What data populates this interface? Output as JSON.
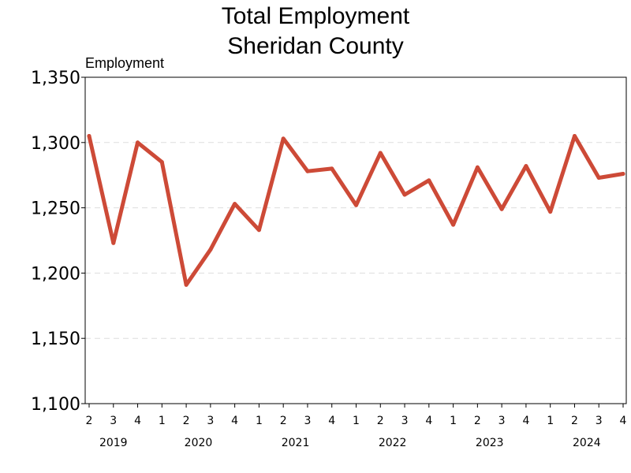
{
  "chart_data": {
    "type": "line",
    "title_lines": [
      "Total Employment",
      "Sheridan County"
    ],
    "ylabel": "Employment",
    "xlabel": "",
    "ylim": [
      1100,
      1350
    ],
    "yticks": [
      1100,
      1150,
      1200,
      1250,
      1300,
      1350
    ],
    "ytick_labels": [
      "1,100",
      "1,150",
      "1,200",
      "1,250",
      "1,300",
      "1,350"
    ],
    "grid": "horizontal-dashed",
    "line_color": "#cd4a37",
    "quarters": [
      "2",
      "3",
      "4",
      "1",
      "2",
      "3",
      "4",
      "1",
      "2",
      "3",
      "4",
      "1",
      "2",
      "3",
      "4",
      "1",
      "2",
      "3",
      "4",
      "1",
      "2",
      "3",
      "4"
    ],
    "years": [
      {
        "label": "2019",
        "start": 0,
        "end": 2
      },
      {
        "label": "2020",
        "start": 3,
        "end": 6
      },
      {
        "label": "2021",
        "start": 7,
        "end": 10
      },
      {
        "label": "2022",
        "start": 11,
        "end": 14
      },
      {
        "label": "2023",
        "start": 15,
        "end": 18
      },
      {
        "label": "2024",
        "start": 19,
        "end": 22
      }
    ],
    "series": [
      {
        "values": [
          1305,
          1223,
          1300,
          1285,
          1191,
          1218,
          1253,
          1233,
          1303,
          1278,
          1280,
          1252,
          1292,
          1260,
          1271,
          1237,
          1281,
          1249,
          1282,
          1247,
          1305,
          1273,
          1276
        ]
      }
    ]
  }
}
